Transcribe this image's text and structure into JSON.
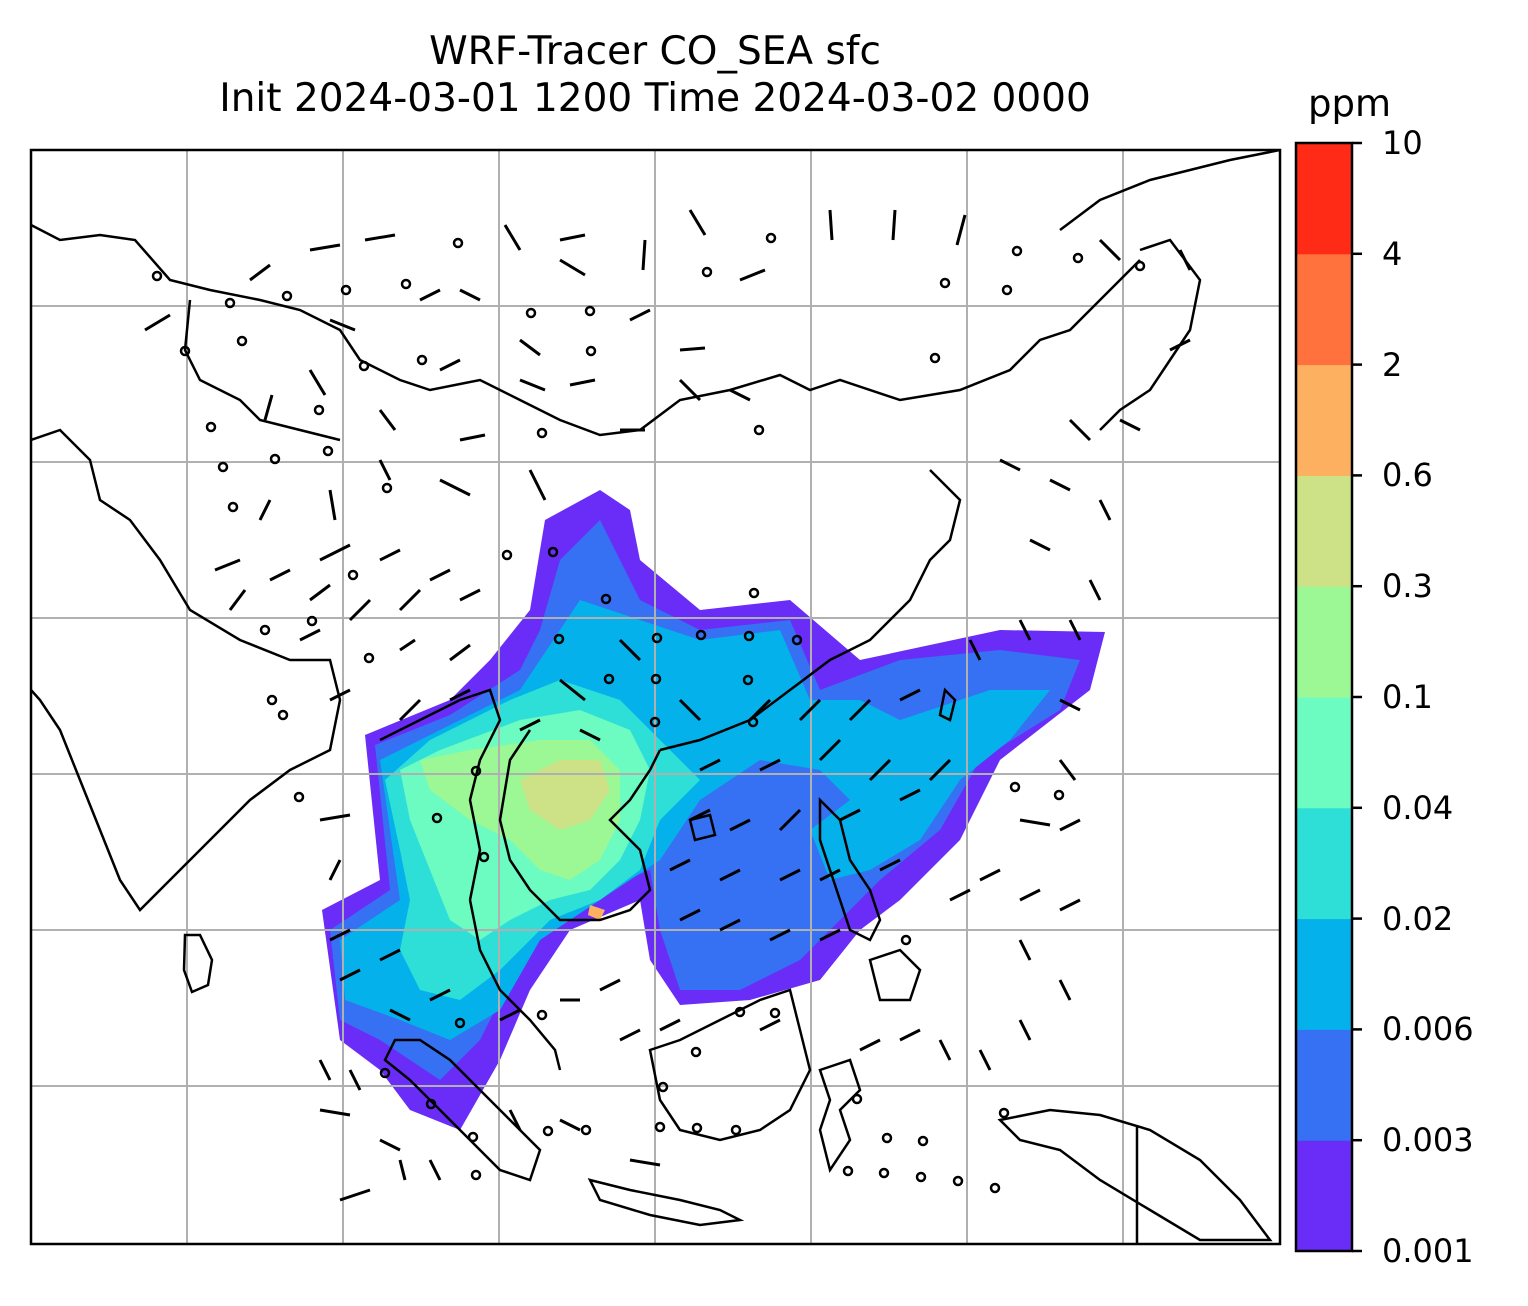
{
  "title": {
    "line1": "WRF-Tracer CO_SEA sfc",
    "line2": "Init 2024-03-01 1200 Time 2024-03-02 0000"
  },
  "colorbar": {
    "unit": "ppm",
    "levels": [
      "0.001",
      "0.003",
      "0.006",
      "0.02",
      "0.04",
      "0.1",
      "0.3",
      "0.6",
      "2",
      "4",
      "10"
    ],
    "colors": [
      "#6a2cf7",
      "#3571f2",
      "#04b1ea",
      "#2edfd7",
      "#6cfbc1",
      "#9bf894",
      "#cde186",
      "#fdb05f",
      "#ff723d",
      "#ff2b16"
    ]
  },
  "map": {
    "colors": {
      "coastline": "#000000",
      "gridline": "#b0b0b0",
      "frame": "#000000"
    }
  }
}
